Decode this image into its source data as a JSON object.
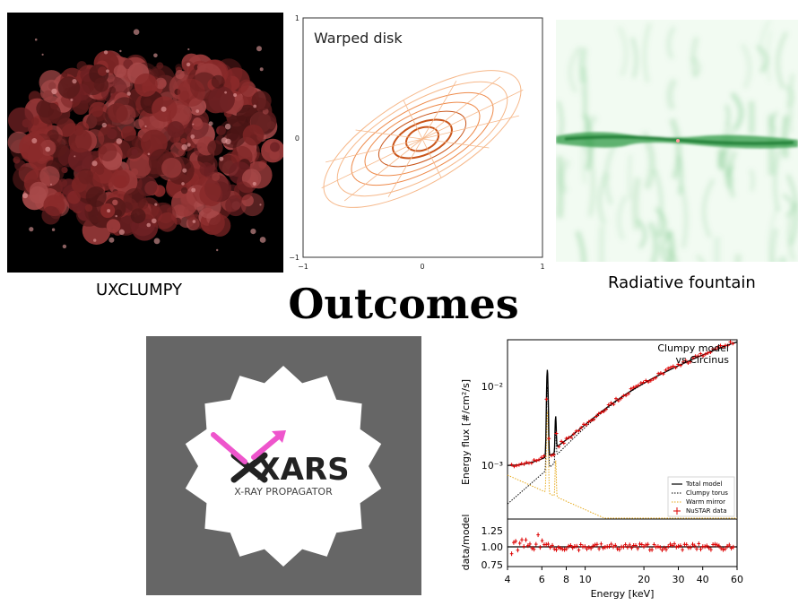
{
  "title": "Outcomes",
  "panels": {
    "uxclumpy": {
      "caption": "UXCLUMPY"
    },
    "warped": {
      "label": "Warped disk",
      "x_ticks": [
        "−1",
        "0",
        "1"
      ],
      "y_ticks": [
        "1",
        "0",
        "−1"
      ]
    },
    "fountain": {
      "caption": "Radiative fountain"
    },
    "xars": {
      "logo_text": "XARS",
      "subtitle": "X-RAY PROPAGATOR"
    },
    "spectrum": {
      "note_line1": "Clumpy model",
      "note_line2": "vs Circinus",
      "ylabel_top": "Energy flux [#/cm²/s]",
      "ylabel_bottom": "data/model",
      "xlabel": "Energy [keV]",
      "y_ticks_top": [
        "10⁻²",
        "10⁻³"
      ],
      "y_ticks_bottom": [
        "1.25",
        "1.00",
        "0.75"
      ],
      "x_ticks": [
        "4",
        "6",
        "8",
        "10",
        "20",
        "30",
        "40",
        "60"
      ],
      "legend": [
        "Total model",
        "Clumpy torus",
        "Warm mirror",
        "NuSTAR data"
      ]
    }
  },
  "colors": {
    "clump": "#8a2a2a",
    "disk": "#f07a2a",
    "fountain": "#3aa04a",
    "xars_bg": "#666666",
    "magenta": "#ee55cc",
    "data": "#dd0000"
  }
}
